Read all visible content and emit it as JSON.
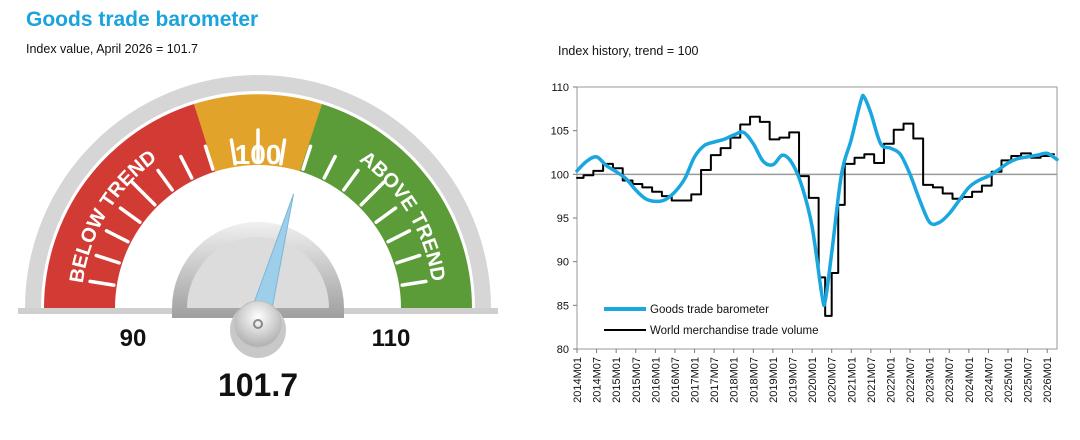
{
  "title": "Goods trade barometer",
  "gauge": {
    "subtitle": "Index value, April 2026 = 101.7",
    "min_label": "90",
    "max_label": "110",
    "mid_label": "100",
    "below_label": "BELOW TREND",
    "above_label": "ABOVE TREND",
    "value_label": "101.7",
    "value": 101.7,
    "range": [
      90,
      110
    ],
    "colors": {
      "below": "#d23b34",
      "mid": "#e2a32b",
      "above": "#5b9b38",
      "rim": "#d9d9d9",
      "needle": "#9ecfea"
    }
  },
  "chart_data": {
    "type": "line",
    "title": "Index history, trend = 100",
    "ylim": [
      80,
      110
    ],
    "yticks": [
      80,
      85,
      90,
      95,
      100,
      105,
      110
    ],
    "reference_line": 100,
    "xlim": [
      "2014M01",
      "2026M04"
    ],
    "xticks": [
      "2014M01",
      "2014M07",
      "2015M01",
      "2015M07",
      "2016M01",
      "2016M07",
      "2017M01",
      "2017M07",
      "2018M01",
      "2018M07",
      "2019M01",
      "2019M07",
      "2020M01",
      "2020M07",
      "2021M01",
      "2021M07",
      "2022M01",
      "2022M07",
      "2023M01",
      "2023M07",
      "2024M01",
      "2024M07",
      "2025M01",
      "2025M07",
      "2026M01"
    ],
    "legend_position": "bottom-left",
    "series": [
      {
        "name": "Goods trade barometer",
        "color": "#1aa7e0",
        "style": "smooth",
        "points": [
          [
            "2014M01",
            100.4
          ],
          [
            "2014M04",
            101.5
          ],
          [
            "2014M07",
            102.0
          ],
          [
            "2014M10",
            101.0
          ],
          [
            "2015M01",
            100.3
          ],
          [
            "2015M04",
            99.5
          ],
          [
            "2015M07",
            98.2
          ],
          [
            "2015M10",
            97.2
          ],
          [
            "2016M01",
            96.9
          ],
          [
            "2016M04",
            97.1
          ],
          [
            "2016M07",
            98.0
          ],
          [
            "2016M10",
            99.5
          ],
          [
            "2017M01",
            102.0
          ],
          [
            "2017M04",
            103.3
          ],
          [
            "2017M07",
            103.7
          ],
          [
            "2017M10",
            104.0
          ],
          [
            "2018M01",
            104.5
          ],
          [
            "2018M04",
            104.8
          ],
          [
            "2018M07",
            103.5
          ],
          [
            "2018M10",
            101.5
          ],
          [
            "2019M01",
            101.1
          ],
          [
            "2019M04",
            102.2
          ],
          [
            "2019M07",
            101.2
          ],
          [
            "2019M10",
            98.5
          ],
          [
            "2020M01",
            94.0
          ],
          [
            "2020M04",
            86.2
          ],
          [
            "2020M05",
            85.5
          ],
          [
            "2020M07",
            91.0
          ],
          [
            "2020M10",
            100.0
          ],
          [
            "2021M01",
            104.0
          ],
          [
            "2021M04",
            108.5
          ],
          [
            "2021M05",
            108.8
          ],
          [
            "2021M07",
            107.0
          ],
          [
            "2021M10",
            103.5
          ],
          [
            "2022M01",
            103.0
          ],
          [
            "2022M04",
            102.3
          ],
          [
            "2022M07",
            100.0
          ],
          [
            "2022M10",
            97.0
          ],
          [
            "2023M01",
            94.5
          ],
          [
            "2023M04",
            94.5
          ],
          [
            "2023M07",
            95.5
          ],
          [
            "2023M10",
            97.0
          ],
          [
            "2024M01",
            98.5
          ],
          [
            "2024M04",
            99.3
          ],
          [
            "2024M07",
            99.8
          ],
          [
            "2024M10",
            100.5
          ],
          [
            "2025M01",
            101.3
          ],
          [
            "2025M04",
            101.8
          ],
          [
            "2025M07",
            102.0
          ],
          [
            "2025M10",
            102.2
          ],
          [
            "2026M01",
            102.4
          ],
          [
            "2026M04",
            101.7
          ]
        ]
      },
      {
        "name": "World merchandise trade volume",
        "color": "#000000",
        "style": "step",
        "points": [
          [
            "2014M01",
            99.6
          ],
          [
            "2014M03",
            99.9
          ],
          [
            "2014M06",
            100.4
          ],
          [
            "2014M09",
            101.2
          ],
          [
            "2014M12",
            100.7
          ],
          [
            "2015M03",
            99.3
          ],
          [
            "2015M06",
            98.9
          ],
          [
            "2015M09",
            98.5
          ],
          [
            "2015M12",
            98.0
          ],
          [
            "2016M03",
            97.5
          ],
          [
            "2016M06",
            97.0
          ],
          [
            "2016M09",
            97.0
          ],
          [
            "2016M12",
            97.7
          ],
          [
            "2017M03",
            100.5
          ],
          [
            "2017M06",
            102.2
          ],
          [
            "2017M09",
            103.0
          ],
          [
            "2017M12",
            104.2
          ],
          [
            "2018M03",
            105.7
          ],
          [
            "2018M06",
            106.6
          ],
          [
            "2018M09",
            106.0
          ],
          [
            "2018M12",
            104.0
          ],
          [
            "2019M03",
            104.2
          ],
          [
            "2019M06",
            104.8
          ],
          [
            "2019M09",
            99.8
          ],
          [
            "2019M12",
            97.3
          ],
          [
            "2020M03",
            88.2
          ],
          [
            "2020M05",
            83.8
          ],
          [
            "2020M07",
            88.7
          ],
          [
            "2020M09",
            96.5
          ],
          [
            "2020M11",
            101.2
          ],
          [
            "2021M02",
            101.9
          ],
          [
            "2021M05",
            102.3
          ],
          [
            "2021M08",
            101.3
          ],
          [
            "2021M11",
            103.5
          ],
          [
            "2022M02",
            105.1
          ],
          [
            "2022M05",
            105.8
          ],
          [
            "2022M08",
            104.1
          ],
          [
            "2022M11",
            98.8
          ],
          [
            "2023M02",
            98.5
          ],
          [
            "2023M05",
            97.8
          ],
          [
            "2023M08",
            97.2
          ],
          [
            "2023M11",
            97.4
          ],
          [
            "2024M02",
            98.0
          ],
          [
            "2024M05",
            98.7
          ],
          [
            "2024M08",
            100.3
          ],
          [
            "2024M11",
            101.6
          ],
          [
            "2025M02",
            102.1
          ],
          [
            "2025M05",
            102.4
          ],
          [
            "2025M08",
            101.9
          ],
          [
            "2025M11",
            102.1
          ],
          [
            "2026M02",
            102.3
          ]
        ]
      }
    ]
  }
}
